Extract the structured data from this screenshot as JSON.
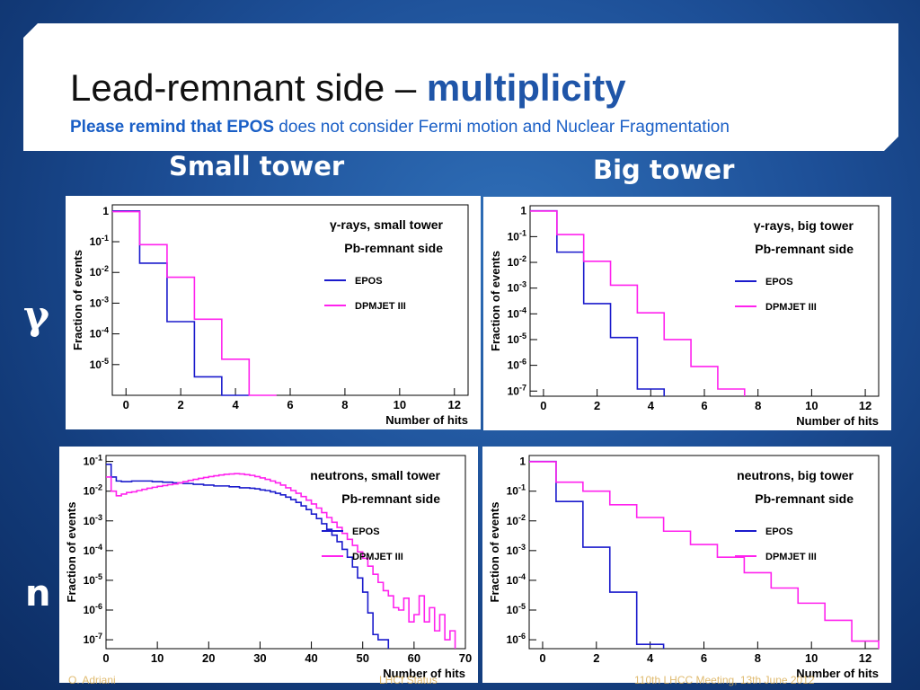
{
  "slide": {
    "title_main": "Lead-remnant side – ",
    "title_accent": "multiplicity",
    "subtitle_bold": "Please remind that EPOS",
    "subtitle_rest": " does not consider Fermi motion and Nuclear Fragmentation",
    "col_small": "Small tower",
    "col_big": "Big tower",
    "row_gamma": "γ",
    "row_n": "n",
    "footer_author": "O. Adriani",
    "footer_center": "LHCf Status",
    "footer_meeting": "110th LHCC Meeting, 13th June 2012"
  },
  "colors": {
    "epos": "#1a1acc",
    "dpmjet": "#ff22ee"
  },
  "chart_data": [
    {
      "type": "line",
      "title": "γ-rays, small tower",
      "subtitle": "Pb-remnant side",
      "xlabel": "Number of hits",
      "ylabel": "Fraction of events",
      "log_y": true,
      "xlim": [
        -0.5,
        12.5
      ],
      "ylim_exp": [
        -6,
        0.2
      ],
      "xticks": [
        0,
        2,
        4,
        6,
        8,
        10,
        12
      ],
      "xtick_labels": [
        "0",
        "2",
        "4",
        "6",
        "8",
        "10",
        "12"
      ],
      "yticks": [
        0,
        -1,
        -2,
        -3,
        -4,
        -5
      ],
      "ytick_labels": [
        {
          "b": "1",
          "e": ""
        },
        {
          "b": "10",
          "e": "-1"
        },
        {
          "b": "10",
          "e": "-2"
        },
        {
          "b": "10",
          "e": "-3"
        },
        {
          "b": "10",
          "e": "-4"
        },
        {
          "b": "10",
          "e": "-5"
        }
      ],
      "legend": [
        "EPOS",
        "DPMJET III"
      ],
      "bin_start": -0.5,
      "bin_width": 1,
      "series": [
        {
          "name": "EPOS",
          "values": [
            1.0,
            0.02,
            0.00025,
            4e-06,
            8e-07
          ]
        },
        {
          "name": "DPMJET III",
          "values": [
            0.95,
            0.08,
            0.007,
            0.0003,
            1.5e-05,
            9e-07
          ]
        }
      ]
    },
    {
      "type": "line",
      "title": "γ-rays, big tower",
      "subtitle": "Pb-remnant side",
      "xlabel": "Number of hits",
      "ylabel": "Fraction of events",
      "log_y": true,
      "xlim": [
        -0.5,
        12.5
      ],
      "ylim_exp": [
        -7.2,
        0.2
      ],
      "xticks": [
        0,
        2,
        4,
        6,
        8,
        10,
        12
      ],
      "xtick_labels": [
        "0",
        "2",
        "4",
        "6",
        "8",
        "10",
        "12"
      ],
      "yticks": [
        0,
        -1,
        -2,
        -3,
        -4,
        -5,
        -6,
        -7
      ],
      "ytick_labels": [
        {
          "b": "1",
          "e": ""
        },
        {
          "b": "10",
          "e": "-1"
        },
        {
          "b": "10",
          "e": "-2"
        },
        {
          "b": "10",
          "e": "-3"
        },
        {
          "b": "10",
          "e": "-4"
        },
        {
          "b": "10",
          "e": "-5"
        },
        {
          "b": "10",
          "e": "-6"
        },
        {
          "b": "10",
          "e": "-7"
        }
      ],
      "legend": [
        "EPOS",
        "DPMJET III"
      ],
      "bin_start": -0.5,
      "bin_width": 1,
      "series": [
        {
          "name": "EPOS",
          "values": [
            1.0,
            0.025,
            0.00025,
            1.2e-05,
            1.2e-07
          ]
        },
        {
          "name": "DPMJET III",
          "values": [
            0.98,
            0.12,
            0.011,
            0.0013,
            0.00011,
            1e-05,
            9e-07,
            1.2e-07
          ]
        }
      ]
    },
    {
      "type": "line",
      "title": "neutrons, small tower",
      "subtitle": "Pb-remnant side",
      "xlabel": "Number of hits",
      "ylabel": "Fraction of events",
      "log_y": true,
      "xlim": [
        0,
        70
      ],
      "ylim_exp": [
        -7.3,
        -0.8
      ],
      "xticks": [
        0,
        10,
        20,
        30,
        40,
        50,
        60,
        70
      ],
      "xtick_labels": [
        "0",
        "10",
        "20",
        "30",
        "40",
        "50",
        "60",
        "70"
      ],
      "yticks": [
        -1,
        -2,
        -3,
        -4,
        -5,
        -6,
        -7
      ],
      "ytick_labels": [
        {
          "b": "10",
          "e": "-1"
        },
        {
          "b": "10",
          "e": "-2"
        },
        {
          "b": "10",
          "e": "-3"
        },
        {
          "b": "10",
          "e": "-4"
        },
        {
          "b": "10",
          "e": "-5"
        },
        {
          "b": "10",
          "e": "-6"
        },
        {
          "b": "10",
          "e": "-7"
        }
      ],
      "legend": [
        "EPOS",
        "DPMJET III"
      ],
      "bin_start": 0,
      "bin_width": 1,
      "series": [
        {
          "name": "EPOS",
          "values": [
            0.08,
            0.03,
            0.022,
            0.021,
            0.021,
            0.022,
            0.022,
            0.022,
            0.022,
            0.021,
            0.021,
            0.02,
            0.02,
            0.019,
            0.019,
            0.018,
            0.018,
            0.017,
            0.017,
            0.016,
            0.016,
            0.015,
            0.015,
            0.015,
            0.014,
            0.014,
            0.013,
            0.013,
            0.0125,
            0.012,
            0.011,
            0.0105,
            0.0095,
            0.0085,
            0.0075,
            0.0063,
            0.0052,
            0.0042,
            0.0032,
            0.0024,
            0.0017,
            0.0012,
            0.0008,
            0.00052,
            0.00033,
            0.0002,
            0.00011,
            6e-05,
            2.8e-05,
            1.2e-05,
            4e-06,
            8e-07,
            1.5e-07,
            1e-07,
            1e-07
          ]
        },
        {
          "name": "DPMJET III",
          "values": [
            0.03,
            0.01,
            0.007,
            0.008,
            0.009,
            0.0095,
            0.0105,
            0.0115,
            0.0125,
            0.0135,
            0.0145,
            0.0155,
            0.0165,
            0.0175,
            0.019,
            0.021,
            0.023,
            0.025,
            0.027,
            0.029,
            0.031,
            0.033,
            0.035,
            0.037,
            0.038,
            0.039,
            0.038,
            0.036,
            0.034,
            0.031,
            0.028,
            0.025,
            0.022,
            0.019,
            0.016,
            0.013,
            0.0105,
            0.0085,
            0.0066,
            0.005,
            0.0037,
            0.0027,
            0.0019,
            0.0013,
            0.0009,
            0.0006,
            0.00038,
            0.00024,
            0.00015,
            9e-05,
            5.5e-05,
            3e-05,
            1.6e-05,
            8.5e-06,
            4.5e-06,
            3e-06,
            1.2e-06,
            1e-06,
            2.5e-06,
            4e-07,
            7e-07,
            3e-06,
            4e-07,
            1.2e-06,
            2e-07,
            7e-07,
            1e-07,
            2e-07
          ]
        }
      ]
    },
    {
      "type": "line",
      "title": "neutrons, big tower",
      "subtitle": "Pb-remnant side",
      "xlabel": "Number of hits",
      "ylabel": "Fraction of events",
      "log_y": true,
      "xlim": [
        -0.5,
        12.5
      ],
      "ylim_exp": [
        -6.3,
        0.2
      ],
      "xticks": [
        0,
        2,
        4,
        6,
        8,
        10,
        12
      ],
      "xtick_labels": [
        "0",
        "2",
        "4",
        "6",
        "8",
        "10",
        "12"
      ],
      "yticks": [
        0,
        -1,
        -2,
        -3,
        -4,
        -5,
        -6
      ],
      "ytick_labels": [
        {
          "b": "1",
          "e": ""
        },
        {
          "b": "10",
          "e": "-1"
        },
        {
          "b": "10",
          "e": "-2"
        },
        {
          "b": "10",
          "e": "-3"
        },
        {
          "b": "10",
          "e": "-4"
        },
        {
          "b": "10",
          "e": "-5"
        },
        {
          "b": "10",
          "e": "-6"
        }
      ],
      "legend": [
        "EPOS",
        "DPMJET III"
      ],
      "bin_start": -0.5,
      "bin_width": 1,
      "series": [
        {
          "name": "EPOS",
          "values": [
            1.0,
            0.045,
            0.0013,
            4e-05,
            7e-07
          ]
        },
        {
          "name": "DPMJET III",
          "values": [
            0.98,
            0.2,
            0.1,
            0.035,
            0.013,
            0.0045,
            0.0016,
            0.0006,
            0.00018,
            5.5e-05,
            1.7e-05,
            4.5e-06,
            9e-07
          ]
        }
      ]
    }
  ]
}
